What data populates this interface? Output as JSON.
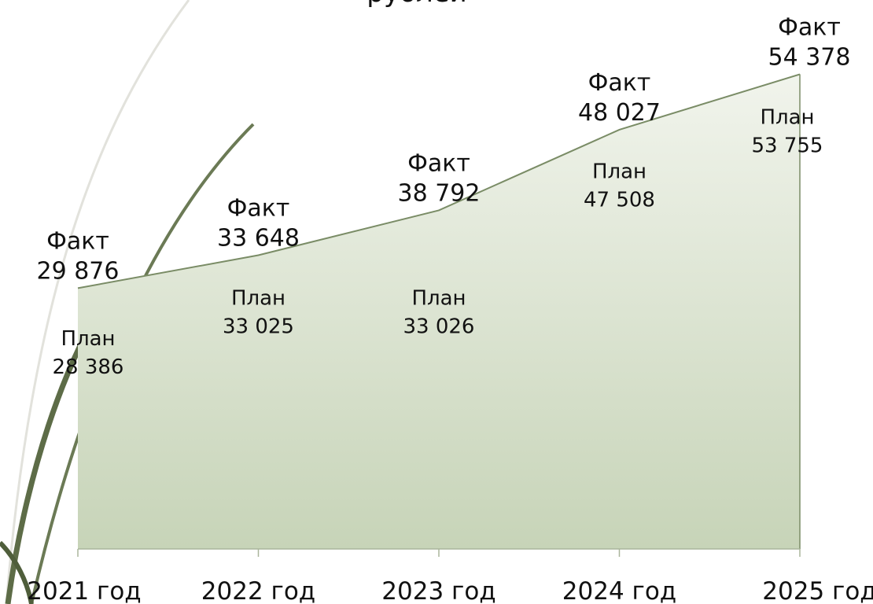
{
  "chart_data": {
    "type": "area",
    "title": "рублей",
    "categories": [
      "2021 год",
      "2022 год",
      "2023 год",
      "2024 год",
      "2025 год"
    ],
    "series": [
      {
        "name": "Факт",
        "color": "#7a8c66",
        "values": [
          29876,
          33648,
          38792,
          48027,
          54378
        ],
        "value_labels": [
          "29 876",
          "33 648",
          "38 792",
          "48 027",
          "54 378"
        ]
      },
      {
        "name": "План",
        "values": [
          28386,
          33025,
          33026,
          47508,
          53755
        ],
        "value_labels": [
          "28 386",
          "33 025",
          "33 026",
          "47 508",
          "53 755"
        ]
      }
    ],
    "ylim": [
      0,
      60000
    ]
  }
}
